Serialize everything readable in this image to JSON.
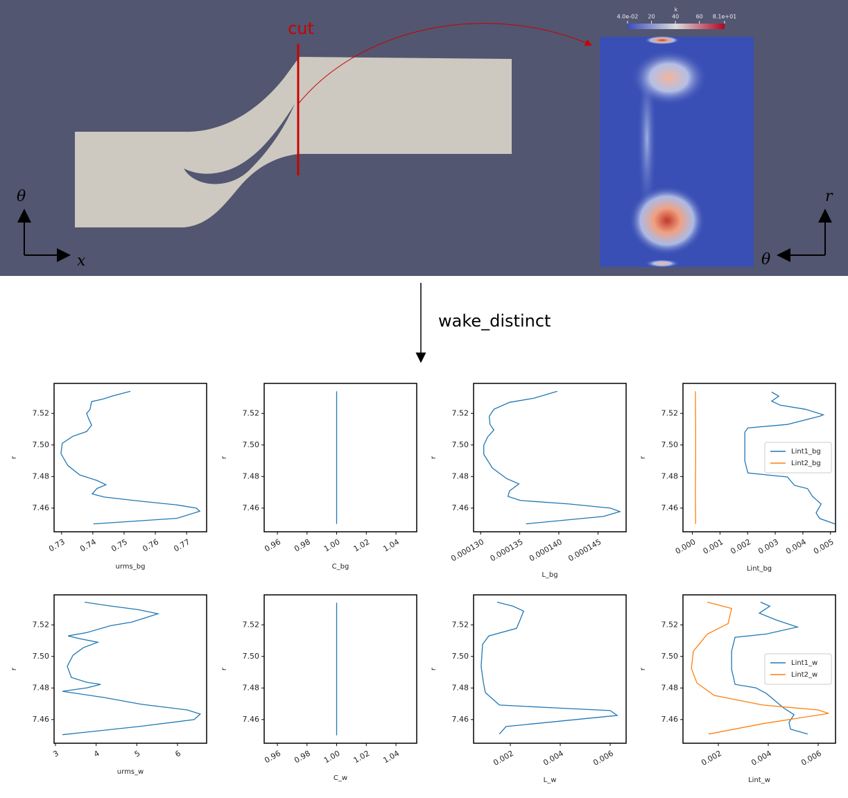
{
  "figure": {
    "cut": "cut",
    "transition": "wake_distinct",
    "left_axes": {
      "vertical": "θ",
      "horizontal": "x"
    },
    "right_axes": {
      "vertical": "r",
      "horizontal": "θ"
    },
    "colorbar": {
      "title": "k",
      "lim": [
        0.04,
        81
      ],
      "ticks": [
        {
          "value": 0.04,
          "label": "4.0e-02"
        },
        20,
        40,
        60,
        {
          "value": 81,
          "label": "8.1e+01"
        }
      ]
    }
  },
  "chart_data": [
    {
      "type": "line",
      "xlabel": "urms_bg",
      "ylabel": "r",
      "xlim": [
        0.7276,
        0.7764
      ],
      "ylim": [
        7.445,
        7.539
      ],
      "xticks": [
        0.73,
        0.74,
        0.75,
        0.76,
        0.77
      ],
      "yticks": [
        7.46,
        7.48,
        {
          "value": 7.5,
          "label": "7.50"
        },
        7.52
      ],
      "series": [
        {
          "color": "#1f77b4",
          "x": [
            0.7402,
            0.7669,
            0.7742,
            0.7731,
            0.7669,
            0.7547,
            0.7436,
            0.7398,
            0.7413,
            0.7442,
            0.7413,
            0.7358,
            0.732,
            0.7298,
            0.7302,
            0.7336,
            0.738,
            0.7396,
            0.7387,
            0.738,
            0.7391,
            0.7396,
            0.7431,
            0.7462,
            0.752
          ],
          "y": [
            7.45,
            7.4535,
            7.458,
            7.46,
            7.462,
            7.4645,
            7.467,
            7.469,
            7.4724,
            7.4748,
            7.4775,
            7.481,
            7.487,
            7.4945,
            7.501,
            7.5055,
            7.5085,
            7.5125,
            7.5165,
            7.52,
            7.5225,
            7.5275,
            7.529,
            7.531,
            7.534
          ]
        }
      ]
    },
    {
      "type": "line",
      "xlabel": "C_bg",
      "ylabel": "r",
      "xlim": [
        0.9511,
        1.054
      ],
      "ylim": [
        7.445,
        7.539
      ],
      "xticks": [
        0.96,
        0.98,
        {
          "value": 1,
          "label": "1.00"
        },
        1.02,
        1.04
      ],
      "yticks": [
        7.46,
        7.48,
        {
          "value": 7.5,
          "label": "7.50"
        },
        7.52
      ],
      "series": [
        {
          "color": "#1f77b4",
          "x": [
            1,
            1
          ],
          "y": [
            7.45,
            7.534
          ]
        }
      ]
    },
    {
      "type": "line",
      "xlabel": "L_bg",
      "ylabel": "r",
      "xlim": [
        0.0001291,
        0.0001486
      ],
      "ylim": [
        7.445,
        7.539
      ],
      "xticks": [
        {
          "value": 0.00013,
          "label": "0.000130"
        },
        {
          "value": 0.000135,
          "label": "0.000135"
        },
        {
          "value": 0.00014,
          "label": "0.000140"
        },
        {
          "value": 0.000145,
          "label": "0.000145"
        }
      ],
      "yticks": [
        7.46,
        7.48,
        {
          "value": 7.5,
          "label": "7.50"
        },
        7.52
      ],
      "series": [
        {
          "color": "#1f77b4",
          "x": [
            0.0001358,
            0.0001457,
            0.0001478,
            0.0001466,
            0.0001413,
            0.0001351,
            0.0001335,
            0.0001337,
            0.0001349,
            0.0001333,
            0.0001315,
            0.0001304,
            0.0001304,
            0.0001309,
            0.0001317,
            0.0001312,
            0.0001311,
            0.0001317,
            0.0001337,
            0.0001368,
            0.0001398
          ],
          "y": [
            7.45,
            7.4547,
            7.4578,
            7.46,
            7.4626,
            7.4648,
            7.4674,
            7.4709,
            7.4753,
            7.4788,
            7.4854,
            7.4941,
            7.4998,
            7.5051,
            7.5095,
            7.513,
            7.5182,
            7.5226,
            7.527,
            7.5296,
            7.534
          ]
        }
      ]
    },
    {
      "type": "line",
      "xlabel": "Lint_bg",
      "ylabel": "r",
      "xlim": [
        -0.000339,
        0.005182
      ],
      "ylim": [
        7.445,
        7.539
      ],
      "xticks": [
        {
          "value": 0,
          "label": "0.000"
        },
        0.001,
        0.002,
        0.003,
        0.004,
        0.005
      ],
      "yticks": [
        7.46,
        7.48,
        {
          "value": 7.5,
          "label": "7.50"
        },
        7.52
      ],
      "legend": "center right",
      "series": [
        {
          "name": "Lint1_bg",
          "color": "#1f77b4",
          "x": [
            0.00516,
            0.00461,
            0.00448,
            0.00466,
            0.00435,
            0.00417,
            0.0037,
            0.00344,
            0.00201,
            0.0019,
            0.0019,
            0.0019,
            0.00201,
            0.00344,
            0.00461,
            0.00474,
            0.00409,
            0.00318,
            0.00287,
            0.00313,
            0.00287
          ],
          "y": [
            7.45,
            7.4534,
            7.4569,
            7.4626,
            7.4674,
            7.4723,
            7.4744,
            7.4797,
            7.4823,
            7.4898,
            7.5007,
            7.5081,
            7.5108,
            7.513,
            7.5182,
            7.5191,
            7.5226,
            7.5252,
            7.5278,
            7.5309,
            7.5335
          ]
        },
        {
          "name": "Lint2_bg",
          "color": "#ff7f0e",
          "x": [
            0.00012,
            0.00011,
            0.00012,
            0.00012,
            0.00011
          ],
          "y": [
            7.45,
            7.47,
            7.49,
            7.51,
            7.534
          ]
        }
      ]
    },
    {
      "type": "line",
      "xlabel": "urms_w",
      "ylabel": "r",
      "xlim": [
        2.966,
        6.716
      ],
      "ylim": [
        7.445,
        7.539
      ],
      "xticks": [
        3,
        4,
        5,
        6
      ],
      "yticks": [
        7.46,
        7.48,
        {
          "value": 7.5,
          "label": "7.50"
        },
        7.52
      ],
      "series": [
        {
          "color": "#1f77b4",
          "x": [
            3.17,
            5.05,
            6.41,
            6.56,
            6.24,
            5.13,
            4.19,
            3.17,
            3.77,
            4.11,
            3.77,
            3.39,
            3.29,
            3.43,
            3.68,
            4.04,
            3.6,
            3.31,
            3.77,
            4.36,
            4.87,
            5.52,
            5.04,
            4.28,
            3.72
          ],
          "y": [
            7.4504,
            7.4556,
            7.46,
            7.4635,
            7.4661,
            7.4696,
            7.474,
            7.4779,
            7.4801,
            7.4823,
            7.4836,
            7.4867,
            7.4937,
            7.5007,
            7.5055,
            7.509,
            7.5112,
            7.513,
            7.5151,
            7.5195,
            7.5217,
            7.527,
            7.5296,
            7.5322,
            7.5344
          ]
        }
      ]
    },
    {
      "type": "line",
      "xlabel": "C_w",
      "ylabel": "r",
      "xlim": [
        0.9511,
        1.054
      ],
      "ylim": [
        7.445,
        7.539
      ],
      "xticks": [
        0.96,
        0.98,
        {
          "value": 1,
          "label": "1.00"
        },
        1.02,
        1.04
      ],
      "yticks": [
        7.46,
        7.48,
        {
          "value": 7.5,
          "label": "7.50"
        },
        7.52
      ],
      "series": [
        {
          "color": "#1f77b4",
          "x": [
            1,
            1
          ],
          "y": [
            7.45,
            7.534
          ]
        }
      ]
    },
    {
      "type": "line",
      "xlabel": "L_w",
      "ylabel": "r",
      "xlim": [
        0.000528,
        0.006639
      ],
      "ylim": [
        7.445,
        7.539
      ],
      "xticks": [
        0.002,
        0.004,
        0.006
      ],
      "yticks": [
        7.46,
        7.48,
        {
          "value": 7.5,
          "label": "7.50"
        },
        7.52
      ],
      "series": [
        {
          "color": "#1f77b4",
          "x": [
            0.00156,
            0.00183,
            0.00628,
            0.006,
            0.00378,
            0.00156,
            0.001,
            0.00092,
            0.00083,
            0.00089,
            0.00114,
            0.00225,
            0.00239,
            0.00253,
            0.00211,
            0.00147
          ],
          "y": [
            7.4508,
            7.4556,
            7.4626,
            7.4657,
            7.4674,
            7.4692,
            7.4771,
            7.4836,
            7.4937,
            7.5077,
            7.513,
            7.5178,
            7.523,
            7.5287,
            7.5318,
            7.5344
          ]
        }
      ]
    },
    {
      "type": "line",
      "xlabel": "Lint_w",
      "ylabel": "r",
      "xlim": [
        0.000583,
        0.006694
      ],
      "ylim": [
        7.445,
        7.539
      ],
      "xticks": [
        0.002,
        0.004,
        0.006
      ],
      "yticks": [
        7.46,
        7.48,
        {
          "value": 7.5,
          "label": "7.50"
        },
        7.52
      ],
      "legend": "center right",
      "series": [
        {
          "name": "Lint1_w",
          "color": "#1f77b4",
          "x": [
            0.00558,
            0.00489,
            0.00483,
            0.00503,
            0.00461,
            0.00392,
            0.0035,
            0.00267,
            0.00253,
            0.00253,
            0.00267,
            0.00392,
            0.00517,
            0.00433,
            0.00364,
            0.00406,
            0.00369
          ],
          "y": [
            7.4508,
            7.4539,
            7.4582,
            7.4631,
            7.4674,
            7.4766,
            7.4801,
            7.4823,
            7.4919,
            7.5033,
            7.5121,
            7.5142,
            7.5186,
            7.523,
            7.5274,
            7.5318,
            7.5344
          ]
        },
        {
          "name": "Lint2_w",
          "color": "#ff7f0e",
          "x": [
            0.00161,
            0.00378,
            0.00642,
            0.006,
            0.00378,
            0.00183,
            0.00114,
            0.00092,
            0.001,
            0.00156,
            0.00239,
            0.00253,
            0.00156
          ],
          "y": [
            7.4508,
            7.4574,
            7.4639,
            7.4661,
            7.4692,
            7.4753,
            7.4832,
            7.4924,
            7.5033,
            7.5142,
            7.5208,
            7.5304,
            7.5344
          ]
        }
      ]
    }
  ]
}
